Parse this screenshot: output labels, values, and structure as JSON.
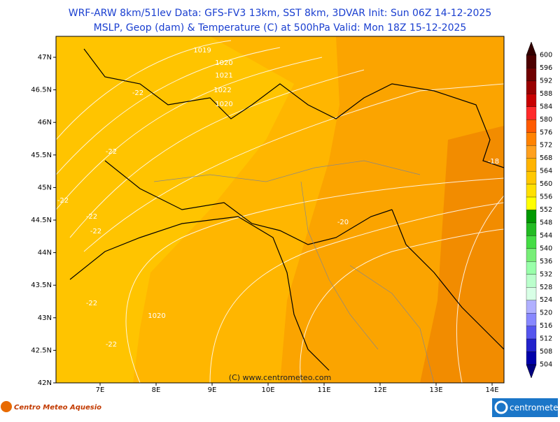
{
  "header": {
    "line1": "WRF-ARW 8km/51lev  Data: GFS-FV3 13km, SST 8km, 3DVAR  Init: Sun 06Z 14-12-2025",
    "line2": "MSLP, Geop (dam) & Temperature (C) at 500hPa  Valid: Mon 18Z 15-12-2025"
  },
  "map": {
    "lat_labels": [
      "47N",
      "46.5N",
      "46N",
      "45.5N",
      "45N",
      "44.5N",
      "44N",
      "43.5N",
      "43N",
      "42.5N",
      "42N"
    ],
    "lon_labels": [
      "7E",
      "8E",
      "9E",
      "10E",
      "11E",
      "12E",
      "13E",
      "14E"
    ],
    "pressure_labels": [
      "1019",
      "1020",
      "1021",
      "1022",
      "1020",
      "1020"
    ],
    "temperature_labels": [
      "-22",
      "-22",
      "-22",
      "-22",
      "-22",
      "-22",
      "-22",
      "-20",
      "-18"
    ],
    "credit": "(C) www.centrometeo.com"
  },
  "colorbar": {
    "labels": [
      "600",
      "596",
      "592",
      "588",
      "584",
      "580",
      "576",
      "572",
      "568",
      "564",
      "560",
      "556",
      "552",
      "548",
      "544",
      "540",
      "536",
      "532",
      "528",
      "524",
      "520",
      "516",
      "512",
      "508",
      "504"
    ],
    "colors": [
      "#4d0000",
      "#700000",
      "#990000",
      "#c80000",
      "#ff2a2a",
      "#ff5a00",
      "#ff8200",
      "#ffa01e",
      "#ffb400",
      "#ffc800",
      "#ffe000",
      "#ffff00",
      "#009900",
      "#22bb22",
      "#44dd44",
      "#77ee77",
      "#99ffaa",
      "#bbffcc",
      "#d8ffe6",
      "#b0b0ff",
      "#8888ff",
      "#5555ee",
      "#2222cc",
      "#0000aa"
    ]
  },
  "footer": {
    "left_logo": "Centro Meteo Aquesio",
    "right_logo": "centrometeo"
  }
}
